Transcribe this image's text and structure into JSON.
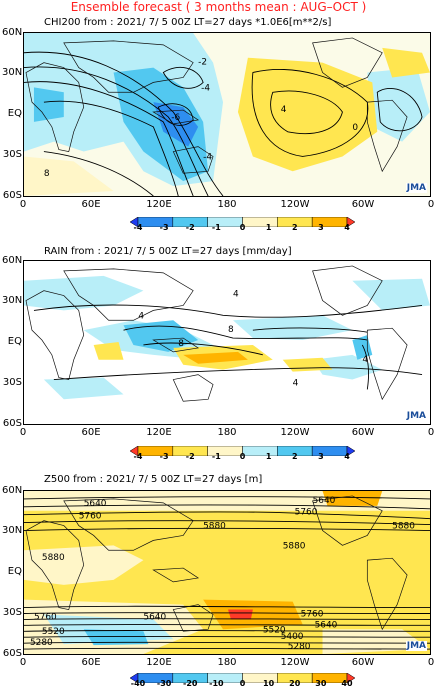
{
  "header": {
    "title": "Ensemble forecast ( 3 months mean : AUG–OCT )"
  },
  "panels": [
    {
      "title": "CHI200  from : 2021/ 7/ 5 00Z LT=27 days  *1.0E6[m**2/s]",
      "lat_labels": [
        "60N",
        "30N",
        "EQ",
        "30S",
        "60S"
      ],
      "lon_labels": [
        "0",
        "60E",
        "120E",
        "180",
        "120W",
        "60W",
        "0"
      ],
      "contour_labels": [
        "-2",
        "-4",
        "-6",
        "-4",
        "8",
        "4",
        "0"
      ],
      "colorbar": {
        "ticks": [
          "-4",
          "-3",
          "-2",
          "-1",
          "0",
          "1",
          "2",
          "3",
          "4"
        ],
        "colors": [
          "#1e3cf0",
          "#2e8ef0",
          "#52c8f0",
          "#b8eef8",
          "#fff6c8",
          "#ffe650",
          "#ffb400",
          "#ff3a28"
        ]
      },
      "logo": "JMA"
    },
    {
      "title": "RAIN   from : 2021/ 7/ 5 00Z LT=27 days  [mm/day]",
      "lat_labels": [
        "60N",
        "30N",
        "EQ",
        "30S",
        "60S"
      ],
      "lon_labels": [
        "0",
        "60E",
        "120E",
        "180",
        "120W",
        "60W",
        "0"
      ],
      "contour_labels": [
        "4",
        "8",
        "4",
        "8",
        "4",
        "4"
      ],
      "colorbar": {
        "ticks": [
          "-4",
          "-3",
          "-2",
          "-1",
          "0",
          "1",
          "2",
          "3",
          "4"
        ],
        "colors": [
          "#ff3a28",
          "#ffb400",
          "#ffe650",
          "#fff6c8",
          "#b8eef8",
          "#52c8f0",
          "#2e8ef0",
          "#1e3cf0"
        ]
      },
      "logo": "JMA"
    },
    {
      "title": "Z500   from : 2021/ 7/ 5 00Z LT=27 days  [m]",
      "lat_labels": [
        "60N",
        "30N",
        "EQ",
        "30S",
        "60S"
      ],
      "lon_labels": [
        "0",
        "60E",
        "120E",
        "180",
        "120W",
        "60W",
        "0"
      ],
      "contour_labels": [
        "5640",
        "5760",
        "5640",
        "5760",
        "5880",
        "5880",
        "5880",
        "5880",
        "5760",
        "5640",
        "5760",
        "5640",
        "5520",
        "5400",
        "5520",
        "5280",
        "5280"
      ],
      "colorbar": {
        "ticks": [
          "-40",
          "-30",
          "-20",
          "-10",
          "0",
          "10",
          "20",
          "30",
          "40"
        ],
        "colors": [
          "#1e3cf0",
          "#2e8ef0",
          "#52c8f0",
          "#b8eef8",
          "#fff6c8",
          "#ffe650",
          "#ffb400",
          "#ff3a28"
        ]
      },
      "logo": "JMA"
    }
  ]
}
